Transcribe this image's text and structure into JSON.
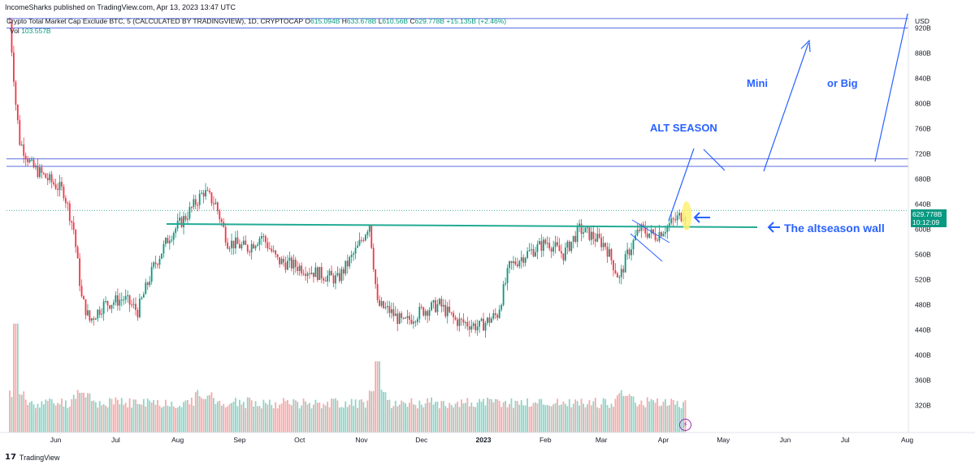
{
  "header": {
    "published": "IncomeSharks published on TradingView.com, Apr 13, 2023 13:47 UTC",
    "symbol": "Crypto Total Market Cap Exclude BTC, 5 (CALCULATED BY TRADINGVIEW), 1D, CRYPTOCAP",
    "open_label": "O",
    "open": "615.094B",
    "high_label": "H",
    "high": "633.678B",
    "low_label": "L",
    "low": "610.56B",
    "close_label": "C",
    "close": "629.778B",
    "change": "+15.135B (+2.46%)",
    "vol_label": "Vol",
    "vol": "103.557B"
  },
  "price_label": {
    "price": "629.778B",
    "time": "10:12:09"
  },
  "footer": {
    "brand": "TradingView"
  },
  "annotations": {
    "alt_season": "ALT SEASON",
    "mini": "Mini",
    "big": "or Big",
    "wall": "The altseason wall"
  },
  "colors": {
    "up": "#089981",
    "down": "#f23645",
    "draw": "#2962ff",
    "wall": "#22ab94",
    "highlight": "#fff176"
  },
  "chart_data": {
    "type": "candlestick",
    "currency": "USD",
    "x_axis": [
      "Jun",
      "Jul",
      "Aug",
      "Sep",
      "Oct",
      "Nov",
      "Dec",
      "2023",
      "Feb",
      "Mar",
      "Apr",
      "May",
      "Jun",
      "Jul",
      "Aug"
    ],
    "y_ticks": [
      "920B",
      "880B",
      "840B",
      "800B",
      "760B",
      "720B",
      "680B",
      "640B",
      "600B",
      "560B",
      "520B",
      "480B",
      "440B",
      "400B",
      "360B",
      "320B"
    ],
    "y_range": [
      300,
      940
    ],
    "price_path": [
      [
        "2022-05-09",
        930
      ],
      [
        "2022-05-12",
        800
      ],
      [
        "2022-05-14",
        740
      ],
      [
        "2022-05-20",
        700
      ],
      [
        "2022-05-28",
        680
      ],
      [
        "2022-06-05",
        660
      ],
      [
        "2022-06-10",
        600
      ],
      [
        "2022-06-14",
        490
      ],
      [
        "2022-06-18",
        455
      ],
      [
        "2022-06-25",
        480
      ],
      [
        "2022-07-05",
        490
      ],
      [
        "2022-07-12",
        470
      ],
      [
        "2022-07-20",
        540
      ],
      [
        "2022-07-28",
        590
      ],
      [
        "2022-08-05",
        620
      ],
      [
        "2022-08-14",
        660
      ],
      [
        "2022-08-20",
        640
      ],
      [
        "2022-08-26",
        580
      ],
      [
        "2022-09-05",
        570
      ],
      [
        "2022-09-12",
        590
      ],
      [
        "2022-09-20",
        550
      ],
      [
        "2022-10-01",
        540
      ],
      [
        "2022-10-10",
        530
      ],
      [
        "2022-10-20",
        520
      ],
      [
        "2022-10-30",
        570
      ],
      [
        "2022-11-05",
        610
      ],
      [
        "2022-11-09",
        480
      ],
      [
        "2022-11-15",
        470
      ],
      [
        "2022-11-22",
        450
      ],
      [
        "2022-12-01",
        470
      ],
      [
        "2022-12-10",
        480
      ],
      [
        "2022-12-18",
        455
      ],
      [
        "2022-12-30",
        445
      ],
      [
        "2023-01-08",
        465
      ],
      [
        "2023-01-14",
        540
      ],
      [
        "2023-01-22",
        560
      ],
      [
        "2023-02-02",
        580
      ],
      [
        "2023-02-10",
        560
      ],
      [
        "2023-02-18",
        600
      ],
      [
        "2023-02-24",
        590
      ],
      [
        "2023-03-03",
        575
      ],
      [
        "2023-03-10",
        520
      ],
      [
        "2023-03-14",
        560
      ],
      [
        "2023-03-20",
        600
      ],
      [
        "2023-03-28",
        590
      ],
      [
        "2023-04-05",
        610
      ],
      [
        "2023-04-13",
        630
      ]
    ],
    "levels": {
      "upper_band": [
        920,
        935
      ],
      "mid_band": [
        700,
        712
      ],
      "altseason_wall": 612
    },
    "volume_peaks": [
      [
        "2022-05-12",
        450
      ],
      [
        "2022-06-14",
        340
      ],
      [
        "2022-08-14",
        330
      ],
      [
        "2022-11-09",
        390
      ],
      [
        "2023-03-13",
        335
      ]
    ]
  }
}
